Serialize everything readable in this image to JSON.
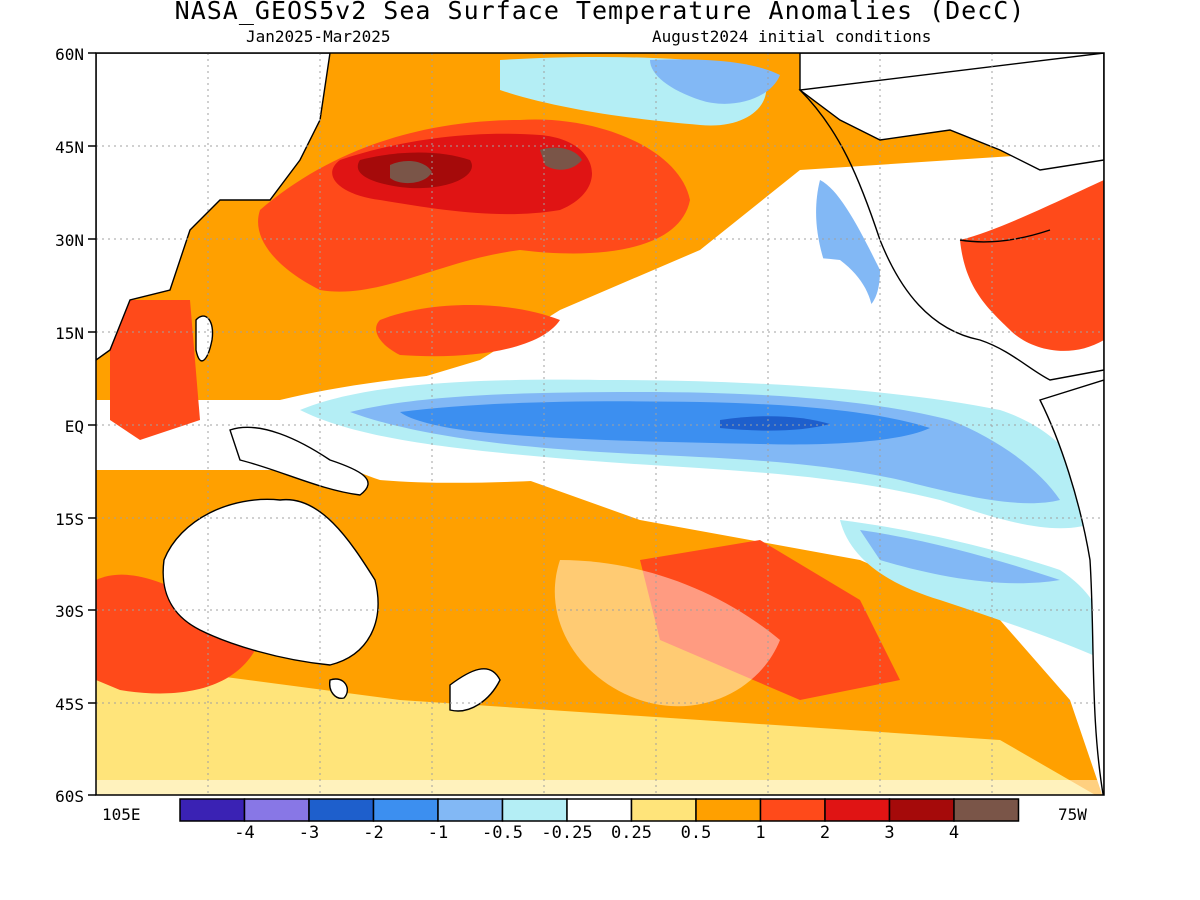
{
  "header": {
    "title": "NASA_GEOS5v2 Sea Surface Temperature Anomalies (DecC)",
    "period": "Jan2025-Mar2025",
    "init": "August2024 initial conditions"
  },
  "axes": {
    "lat_labels": [
      "60N",
      "45N",
      "30N",
      "15N",
      "EQ",
      "15S",
      "30S",
      "45S",
      "60S"
    ],
    "lon_left": "105E",
    "lon_right": "75W"
  },
  "colorbar": {
    "colors": [
      "#3a22b4",
      "#8877e6",
      "#1e5fcc",
      "#3c8ff0",
      "#82b8f5",
      "#b4eef5",
      "#ffffff",
      "#ffe47a",
      "#ffa000",
      "#ff4a1a",
      "#e01414",
      "#a50a0a",
      "#7a5548"
    ],
    "labels": [
      "-4",
      "-3",
      "-2",
      "-1",
      "-0.5",
      "-0.25",
      "0.25",
      "0.5",
      "1",
      "2",
      "3",
      "4"
    ]
  }
}
